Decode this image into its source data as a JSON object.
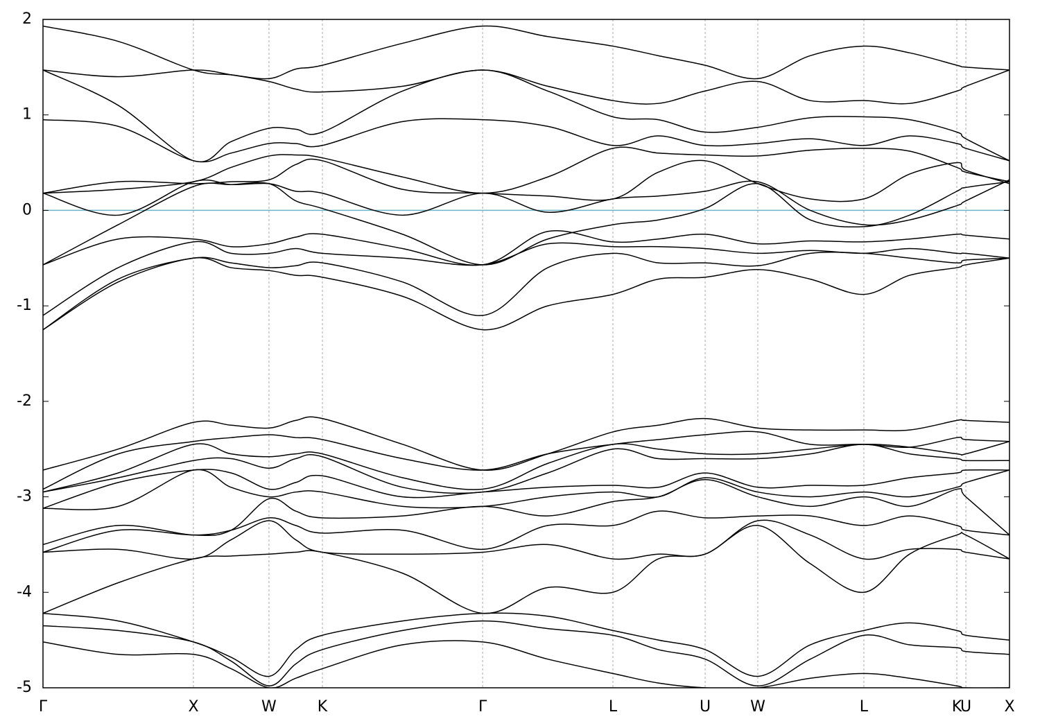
{
  "chart_data": {
    "type": "line",
    "x": [
      0,
      0.5,
      1.0,
      1.25,
      1.502,
      1.68,
      1.857,
      2.39,
      2.922,
      3.355,
      3.788,
      4.09,
      4.401,
      4.751,
      5.1,
      5.456,
      5.76,
      6.074,
      6.134,
      6.424
    ],
    "xlim": [
      0,
      6.424
    ],
    "xticks": [
      {
        "value": 0,
        "label": "Γ"
      },
      {
        "value": 1.0,
        "label": "X"
      },
      {
        "value": 1.502,
        "label": "W"
      },
      {
        "value": 1.857,
        "label": "K"
      },
      {
        "value": 2.922,
        "label": "Γ"
      },
      {
        "value": 3.788,
        "label": "L"
      },
      {
        "value": 4.401,
        "label": "U"
      },
      {
        "value": 4.751,
        "label": "W"
      },
      {
        "value": 5.456,
        "label": "L"
      },
      {
        "value": 6.074,
        "label": "K"
      },
      {
        "value": 6.134,
        "label": "U"
      },
      {
        "value": 6.424,
        "label": "X"
      }
    ],
    "ylim": [
      -5,
      2
    ],
    "yticks": [
      -5,
      -4,
      -3,
      -2,
      -1,
      0,
      1,
      2
    ],
    "xgrid": true,
    "line_color": "#000000",
    "fermi_level": 0,
    "fermi_color": "#6ab4c9",
    "series": [
      {
        "values": [
          1.93,
          1.77,
          1.47,
          1.42,
          1.38,
          1.48,
          1.52,
          1.75,
          1.93,
          1.82,
          1.72,
          1.62,
          1.52,
          1.38,
          1.62,
          1.72,
          1.65,
          1.52,
          1.5,
          1.47
        ]
      },
      {
        "values": [
          1.47,
          1.4,
          1.47,
          1.42,
          1.35,
          1.27,
          1.24,
          1.3,
          1.47,
          1.3,
          1.15,
          1.12,
          1.25,
          1.35,
          1.15,
          1.15,
          1.12,
          1.25,
          1.3,
          1.47
        ]
      },
      {
        "values": [
          1.47,
          1.1,
          0.52,
          0.72,
          0.86,
          0.85,
          0.82,
          1.25,
          1.47,
          1.25,
          0.98,
          0.95,
          0.82,
          0.87,
          0.97,
          0.98,
          0.95,
          0.82,
          0.75,
          0.52
        ]
      },
      {
        "values": [
          0.95,
          0.88,
          0.52,
          0.6,
          0.7,
          0.7,
          0.68,
          0.93,
          0.95,
          0.88,
          0.68,
          0.78,
          0.68,
          0.7,
          0.75,
          0.68,
          0.78,
          0.7,
          0.65,
          0.52
        ]
      },
      {
        "values": [
          0.18,
          0.22,
          0.3,
          0.45,
          0.57,
          0.58,
          0.55,
          0.35,
          0.18,
          0.35,
          0.65,
          0.6,
          0.58,
          0.57,
          0.63,
          0.65,
          0.62,
          0.45,
          0.4,
          0.3
        ]
      },
      {
        "values": [
          0.18,
          0.3,
          0.28,
          0.3,
          0.32,
          0.48,
          0.52,
          0.22,
          0.18,
          0.15,
          0.12,
          0.4,
          0.52,
          0.28,
          0.12,
          0.12,
          0.38,
          0.5,
          0.42,
          0.28
        ]
      },
      {
        "values": [
          0.18,
          -0.05,
          0.3,
          0.27,
          0.28,
          0.2,
          0.18,
          -0.05,
          0.18,
          -0.02,
          0.12,
          0.15,
          0.2,
          0.3,
          0.0,
          -0.15,
          -0.1,
          0.05,
          0.1,
          0.32
        ]
      },
      {
        "values": [
          -0.57,
          -0.15,
          0.25,
          0.27,
          0.28,
          0.1,
          0.02,
          -0.25,
          -0.57,
          -0.3,
          -0.15,
          -0.1,
          0.02,
          0.28,
          -0.1,
          -0.17,
          -0.05,
          0.2,
          0.24,
          0.3
        ]
      },
      {
        "values": [
          -0.57,
          -0.3,
          -0.3,
          -0.38,
          -0.35,
          -0.28,
          -0.25,
          -0.4,
          -0.57,
          -0.22,
          -0.33,
          -0.3,
          -0.25,
          -0.35,
          -0.32,
          -0.33,
          -0.3,
          -0.25,
          -0.26,
          -0.3
        ]
      },
      {
        "values": [
          -1.1,
          -0.6,
          -0.33,
          -0.45,
          -0.45,
          -0.4,
          -0.45,
          -0.5,
          -0.57,
          -0.35,
          -0.38,
          -0.38,
          -0.4,
          -0.45,
          -0.42,
          -0.45,
          -0.4,
          -0.45,
          -0.45,
          -0.5
        ]
      },
      {
        "values": [
          -1.25,
          -0.72,
          -0.5,
          -0.55,
          -0.6,
          -0.58,
          -0.55,
          -0.75,
          -1.1,
          -0.6,
          -0.45,
          -0.55,
          -0.55,
          -0.58,
          -0.45,
          -0.45,
          -0.5,
          -0.55,
          -0.52,
          -0.5
        ]
      },
      {
        "values": [
          -1.25,
          -0.75,
          -0.5,
          -0.6,
          -0.63,
          -0.68,
          -0.7,
          -0.9,
          -1.25,
          -1.0,
          -0.88,
          -0.72,
          -0.7,
          -0.62,
          -0.72,
          -0.88,
          -0.68,
          -0.6,
          -0.57,
          -0.5
        ]
      },
      {
        "values": [
          -2.72,
          -2.5,
          -2.22,
          -2.25,
          -2.28,
          -2.2,
          -2.18,
          -2.45,
          -2.72,
          -2.55,
          -2.32,
          -2.25,
          -2.18,
          -2.28,
          -2.3,
          -2.3,
          -2.3,
          -2.2,
          -2.2,
          -2.22
        ]
      },
      {
        "values": [
          -2.92,
          -2.55,
          -2.42,
          -2.38,
          -2.35,
          -2.38,
          -2.4,
          -2.6,
          -2.72,
          -2.55,
          -2.45,
          -2.4,
          -2.35,
          -2.32,
          -2.45,
          -2.45,
          -2.48,
          -2.38,
          -2.4,
          -2.42
        ]
      },
      {
        "values": [
          -2.95,
          -2.75,
          -2.45,
          -2.55,
          -2.58,
          -2.55,
          -2.55,
          -2.8,
          -2.92,
          -2.65,
          -2.45,
          -2.5,
          -2.55,
          -2.55,
          -2.5,
          -2.45,
          -2.48,
          -2.55,
          -2.55,
          -2.42
        ]
      },
      {
        "values": [
          -2.95,
          -2.8,
          -2.62,
          -2.6,
          -2.7,
          -2.6,
          -2.58,
          -2.9,
          -2.95,
          -2.75,
          -2.5,
          -2.6,
          -2.6,
          -2.6,
          -2.55,
          -2.45,
          -2.55,
          -2.6,
          -2.62,
          -2.62
        ]
      },
      {
        "values": [
          -3.12,
          -2.85,
          -2.72,
          -2.75,
          -2.92,
          -2.85,
          -2.78,
          -3.0,
          -2.95,
          -2.9,
          -2.88,
          -2.9,
          -2.75,
          -2.9,
          -2.88,
          -2.88,
          -2.8,
          -2.75,
          -2.72,
          -2.72
        ]
      },
      {
        "values": [
          -3.12,
          -3.1,
          -2.72,
          -2.9,
          -3.0,
          -2.95,
          -2.95,
          -3.1,
          -3.1,
          -3.0,
          -2.95,
          -3.0,
          -2.8,
          -2.95,
          -3.0,
          -2.95,
          -3.0,
          -2.9,
          -2.85,
          -2.72
        ]
      },
      {
        "values": [
          -3.5,
          -3.3,
          -3.4,
          -3.35,
          -3.02,
          -3.15,
          -3.22,
          -3.2,
          -3.1,
          -3.2,
          -3.05,
          -3.0,
          -2.82,
          -3.0,
          -3.1,
          -3.0,
          -3.1,
          -2.92,
          -3.0,
          -3.4
        ]
      },
      {
        "values": [
          -3.58,
          -3.35,
          -3.4,
          -3.35,
          -3.22,
          -3.3,
          -3.38,
          -3.35,
          -3.55,
          -3.3,
          -3.3,
          -3.15,
          -3.22,
          -3.2,
          -3.2,
          -3.3,
          -3.2,
          -3.3,
          -3.35,
          -3.4
        ]
      },
      {
        "values": [
          -3.58,
          -3.55,
          -3.65,
          -3.45,
          -3.25,
          -3.45,
          -3.58,
          -3.6,
          -3.58,
          -3.5,
          -3.65,
          -3.6,
          -3.6,
          -3.25,
          -3.4,
          -3.65,
          -3.55,
          -3.55,
          -3.58,
          -3.65
        ]
      },
      {
        "values": [
          -4.22,
          -3.9,
          -3.65,
          -3.62,
          -3.6,
          -3.58,
          -3.58,
          -3.8,
          -4.22,
          -3.95,
          -4.0,
          -3.65,
          -3.6,
          -3.3,
          -3.7,
          -4.0,
          -3.6,
          -3.4,
          -3.4,
          -3.65
        ]
      },
      {
        "values": [
          -4.22,
          -4.3,
          -4.52,
          -4.68,
          -4.88,
          -4.6,
          -4.45,
          -4.3,
          -4.22,
          -4.25,
          -4.4,
          -4.5,
          -4.6,
          -4.88,
          -4.55,
          -4.4,
          -4.32,
          -4.4,
          -4.45,
          -4.5
        ]
      },
      {
        "values": [
          -4.35,
          -4.4,
          -4.52,
          -4.72,
          -4.98,
          -4.75,
          -4.6,
          -4.4,
          -4.3,
          -4.38,
          -4.45,
          -4.6,
          -4.7,
          -4.98,
          -4.7,
          -4.45,
          -4.55,
          -4.58,
          -4.62,
          -4.65
        ]
      },
      {
        "values": [
          -4.52,
          -4.65,
          -4.65,
          -4.8,
          -5.0,
          -4.9,
          -4.8,
          -4.55,
          -4.52,
          -4.7,
          -4.85,
          -4.95,
          -5.0,
          -5.0,
          -4.9,
          -4.85,
          -4.9,
          -4.98,
          -5.0,
          -5.0
        ]
      }
    ]
  }
}
